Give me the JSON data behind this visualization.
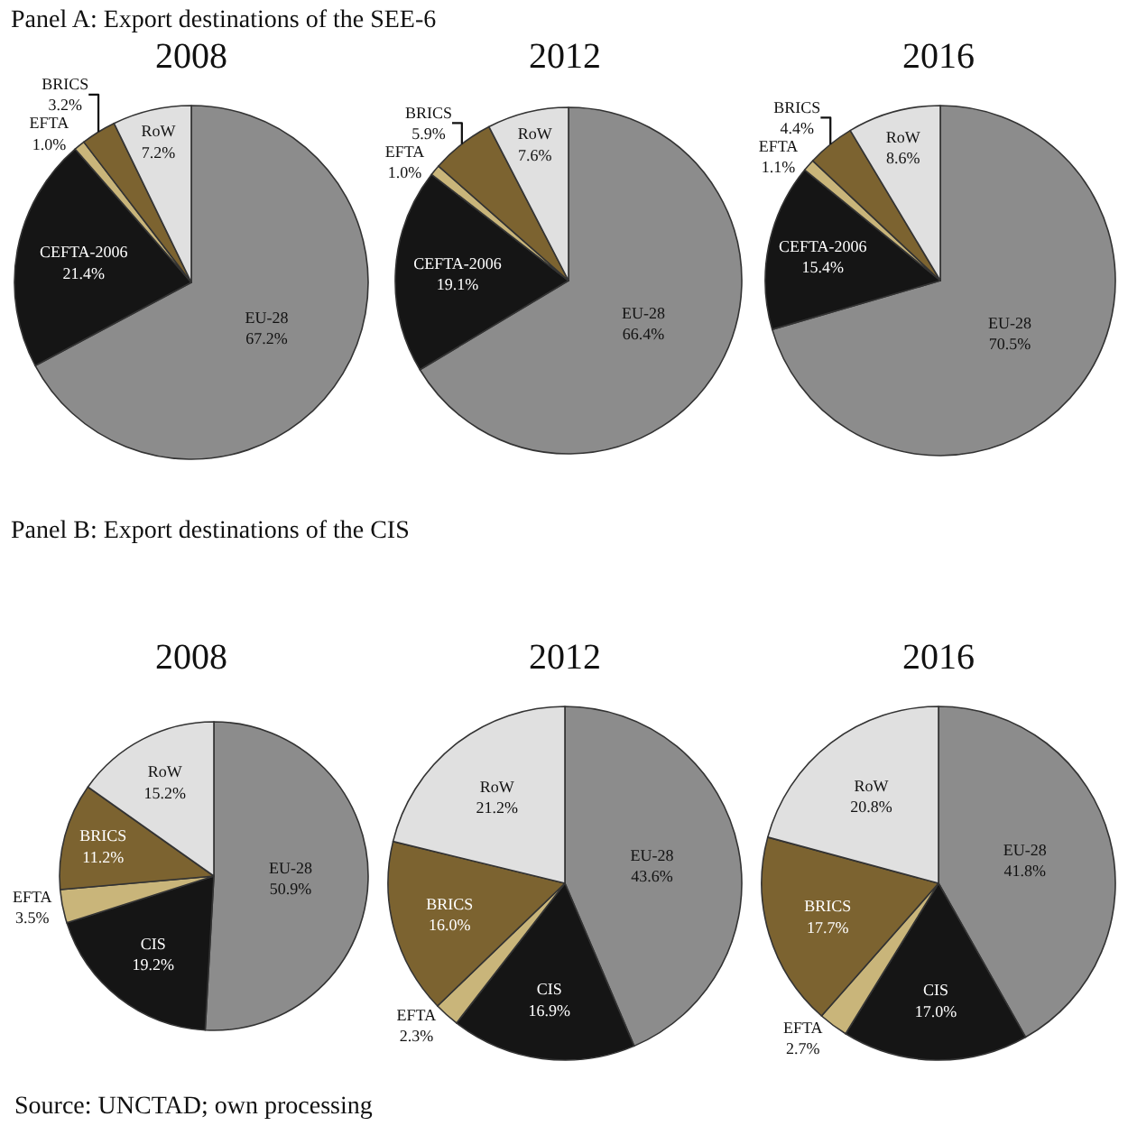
{
  "chart_data": [
    {
      "type": "pie",
      "subtitle": "Panel A: Export destinations of the SEE-6",
      "title": "2008",
      "categories": [
        "EU-28",
        "CEFTA-2006",
        "EFTA",
        "BRICS",
        "RoW"
      ],
      "values": [
        67.2,
        21.4,
        1.0,
        3.2,
        7.2
      ],
      "value_labels": [
        "67.2%",
        "21.4%",
        "1.0%",
        "3.2%",
        "7.2%"
      ],
      "colors": [
        "#8c8c8c",
        "#151515",
        "#c9b57a",
        "#7c6330",
        "#e0e0e0"
      ],
      "legend": false
    },
    {
      "type": "pie",
      "title": "2012",
      "categories": [
        "EU-28",
        "CEFTA-2006",
        "EFTA",
        "BRICS",
        "RoW"
      ],
      "values": [
        66.4,
        19.1,
        1.0,
        5.9,
        7.6
      ],
      "value_labels": [
        "66.4%",
        "19.1%",
        "1.0%",
        "5.9%",
        "7.6%"
      ],
      "colors": [
        "#8c8c8c",
        "#151515",
        "#c9b57a",
        "#7c6330",
        "#e0e0e0"
      ],
      "legend": false
    },
    {
      "type": "pie",
      "title": "2016",
      "categories": [
        "EU-28",
        "CEFTA-2006",
        "EFTA",
        "BRICS",
        "RoW"
      ],
      "values": [
        70.5,
        15.4,
        1.1,
        4.4,
        8.6
      ],
      "value_labels": [
        "70.5%",
        "15.4%",
        "1.1%",
        "4.4%",
        "8.6%"
      ],
      "colors": [
        "#8c8c8c",
        "#151515",
        "#c9b57a",
        "#7c6330",
        "#e0e0e0"
      ],
      "legend": false
    },
    {
      "type": "pie",
      "subtitle": "Panel B: Export destinations of the CIS",
      "title": "2008",
      "categories": [
        "EU-28",
        "CIS",
        "EFTA",
        "BRICS",
        "RoW"
      ],
      "values": [
        50.9,
        19.2,
        3.5,
        11.2,
        15.2
      ],
      "value_labels": [
        "50.9%",
        "19.2%",
        "3.5%",
        "11.2%",
        "15.2%"
      ],
      "colors": [
        "#8c8c8c",
        "#151515",
        "#c9b57a",
        "#7c6330",
        "#e0e0e0"
      ],
      "legend": false
    },
    {
      "type": "pie",
      "title": "2012",
      "categories": [
        "EU-28",
        "CIS",
        "EFTA",
        "BRICS",
        "RoW"
      ],
      "values": [
        43.6,
        16.9,
        2.3,
        16.0,
        21.2
      ],
      "value_labels": [
        "43.6%",
        "16.9%",
        "2.3%",
        "16.0%",
        "21.2%"
      ],
      "colors": [
        "#8c8c8c",
        "#151515",
        "#c9b57a",
        "#7c6330",
        "#e0e0e0"
      ],
      "legend": false
    },
    {
      "type": "pie",
      "title": "2016",
      "categories": [
        "EU-28",
        "CIS",
        "EFTA",
        "BRICS",
        "RoW"
      ],
      "values": [
        41.8,
        17.0,
        2.7,
        17.7,
        20.8
      ],
      "value_labels": [
        "41.8%",
        "17.0%",
        "2.7%",
        "17.7%",
        "20.8%"
      ],
      "colors": [
        "#8c8c8c",
        "#151515",
        "#c9b57a",
        "#7c6330",
        "#e0e0e0"
      ],
      "legend": false,
      "annotations": [
        "Source: UNCTAD; own processing"
      ]
    }
  ]
}
